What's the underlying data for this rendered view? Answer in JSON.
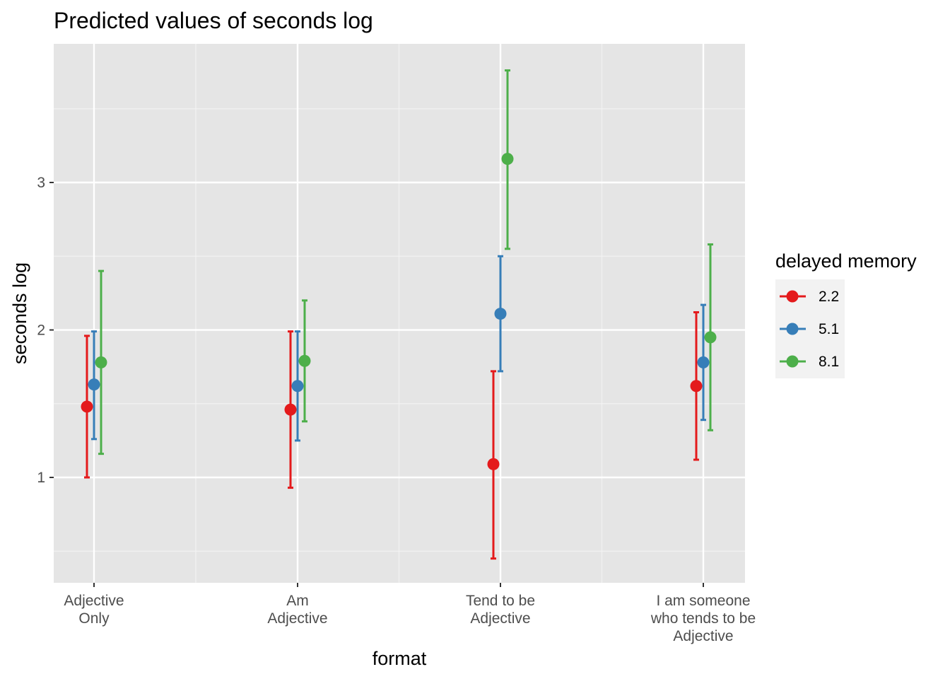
{
  "chart_data": {
    "type": "scatter",
    "title": "Predicted values of seconds log",
    "xlabel": "format",
    "ylabel": "seconds log",
    "categories": [
      [
        "Adjective",
        "Only"
      ],
      [
        "Am",
        "Adjective"
      ],
      [
        "Tend to be",
        "Adjective"
      ],
      [
        "I am someone",
        "who tends to be",
        "Adjective"
      ]
    ],
    "ylim": [
      0.3,
      3.9
    ],
    "yticks": [
      1,
      2,
      3
    ],
    "ytick_labels": [
      "1",
      "2",
      "3"
    ],
    "grid": true,
    "legend": {
      "title": "delayed memory",
      "position": "right"
    },
    "series": [
      {
        "name": "2.2",
        "color": "#e41a1c",
        "values": [
          1.48,
          1.46,
          1.09,
          1.62
        ],
        "lower": [
          1.0,
          0.93,
          0.45,
          1.12
        ],
        "upper": [
          1.96,
          1.99,
          1.72,
          2.12
        ]
      },
      {
        "name": "5.1",
        "color": "#377eb8",
        "values": [
          1.63,
          1.62,
          2.11,
          1.78
        ],
        "lower": [
          1.26,
          1.25,
          1.72,
          1.39
        ],
        "upper": [
          1.99,
          1.99,
          2.5,
          2.17
        ]
      },
      {
        "name": "8.1",
        "color": "#4daf4a",
        "values": [
          1.78,
          1.79,
          3.16,
          1.95
        ],
        "lower": [
          1.16,
          1.38,
          2.55,
          1.32
        ],
        "upper": [
          2.4,
          2.2,
          3.76,
          2.58
        ]
      }
    ]
  }
}
